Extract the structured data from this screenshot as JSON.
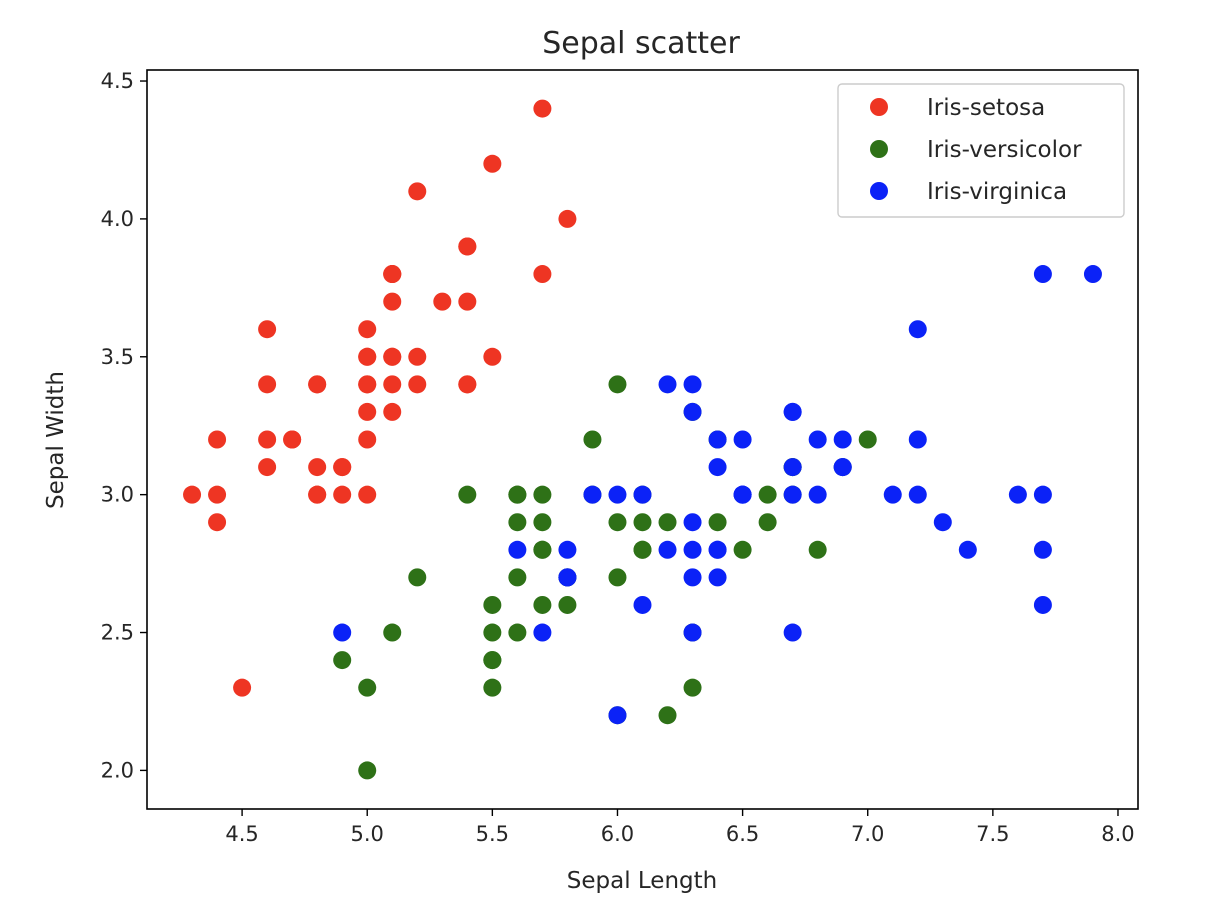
{
  "chart_data": {
    "type": "scatter",
    "title": "Sepal scatter",
    "xlabel": "Sepal Length",
    "ylabel": "Sepal Width",
    "xlim": [
      4.12,
      8.08
    ],
    "ylim": [
      1.86,
      4.54
    ],
    "x_ticks": [
      4.5,
      5.0,
      5.5,
      6.0,
      6.5,
      7.0,
      7.5,
      8.0
    ],
    "x_tick_labels": [
      "4.5",
      "5.0",
      "5.5",
      "6.0",
      "6.5",
      "7.0",
      "7.5",
      "8.0"
    ],
    "y_ticks": [
      2.0,
      2.5,
      3.0,
      3.5,
      4.0,
      4.5
    ],
    "y_tick_labels": [
      "2.0",
      "2.5",
      "3.0",
      "3.5",
      "4.0",
      "4.5"
    ],
    "grid": false,
    "legend_position": "top-right",
    "series": [
      {
        "name": "Iris-setosa",
        "color": "#ee3523",
        "points": [
          [
            5.1,
            3.5
          ],
          [
            4.9,
            3.0
          ],
          [
            4.7,
            3.2
          ],
          [
            4.6,
            3.1
          ],
          [
            5.0,
            3.6
          ],
          [
            5.4,
            3.9
          ],
          [
            4.6,
            3.4
          ],
          [
            5.0,
            3.4
          ],
          [
            4.4,
            2.9
          ],
          [
            4.9,
            3.1
          ],
          [
            5.4,
            3.7
          ],
          [
            4.8,
            3.4
          ],
          [
            4.8,
            3.0
          ],
          [
            4.3,
            3.0
          ],
          [
            5.8,
            4.0
          ],
          [
            5.7,
            4.4
          ],
          [
            5.4,
            3.9
          ],
          [
            5.1,
            3.5
          ],
          [
            5.7,
            3.8
          ],
          [
            5.1,
            3.8
          ],
          [
            5.4,
            3.4
          ],
          [
            5.1,
            3.7
          ],
          [
            4.6,
            3.6
          ],
          [
            5.1,
            3.3
          ],
          [
            4.8,
            3.4
          ],
          [
            5.0,
            3.0
          ],
          [
            5.0,
            3.4
          ],
          [
            5.2,
            3.5
          ],
          [
            5.2,
            3.4
          ],
          [
            4.7,
            3.2
          ],
          [
            4.8,
            3.1
          ],
          [
            5.4,
            3.4
          ],
          [
            5.2,
            4.1
          ],
          [
            5.5,
            4.2
          ],
          [
            4.9,
            3.1
          ],
          [
            5.0,
            3.2
          ],
          [
            5.5,
            3.5
          ],
          [
            4.4,
            3.0
          ],
          [
            5.1,
            3.4
          ],
          [
            5.0,
            3.5
          ],
          [
            4.5,
            2.3
          ],
          [
            4.4,
            3.2
          ],
          [
            5.0,
            3.5
          ],
          [
            5.1,
            3.8
          ],
          [
            4.8,
            3.0
          ],
          [
            5.1,
            3.8
          ],
          [
            4.6,
            3.2
          ],
          [
            5.3,
            3.7
          ],
          [
            5.0,
            3.3
          ]
        ]
      },
      {
        "name": "Iris-versicolor",
        "color": "#2e7117",
        "points": [
          [
            7.0,
            3.2
          ],
          [
            6.4,
            3.2
          ],
          [
            6.9,
            3.1
          ],
          [
            5.5,
            2.3
          ],
          [
            6.5,
            2.8
          ],
          [
            5.7,
            2.8
          ],
          [
            6.3,
            3.3
          ],
          [
            4.9,
            2.4
          ],
          [
            6.6,
            2.9
          ],
          [
            5.2,
            2.7
          ],
          [
            5.0,
            2.0
          ],
          [
            5.9,
            3.0
          ],
          [
            6.0,
            2.2
          ],
          [
            6.1,
            2.9
          ],
          [
            5.6,
            2.9
          ],
          [
            6.7,
            3.1
          ],
          [
            5.6,
            3.0
          ],
          [
            5.8,
            2.7
          ],
          [
            6.2,
            2.2
          ],
          [
            5.6,
            2.5
          ],
          [
            5.9,
            3.2
          ],
          [
            6.1,
            2.8
          ],
          [
            6.3,
            2.5
          ],
          [
            6.1,
            2.8
          ],
          [
            6.4,
            2.9
          ],
          [
            6.6,
            3.0
          ],
          [
            6.8,
            2.8
          ],
          [
            6.7,
            3.0
          ],
          [
            6.0,
            2.9
          ],
          [
            5.7,
            2.6
          ],
          [
            5.5,
            2.4
          ],
          [
            5.5,
            2.4
          ],
          [
            5.8,
            2.7
          ],
          [
            6.0,
            2.7
          ],
          [
            5.4,
            3.0
          ],
          [
            6.0,
            3.4
          ],
          [
            6.7,
            3.1
          ],
          [
            6.3,
            2.3
          ],
          [
            5.6,
            3.0
          ],
          [
            5.5,
            2.5
          ],
          [
            5.5,
            2.6
          ],
          [
            6.1,
            3.0
          ],
          [
            5.8,
            2.6
          ],
          [
            5.0,
            2.3
          ],
          [
            5.6,
            2.7
          ],
          [
            5.7,
            3.0
          ],
          [
            5.7,
            2.9
          ],
          [
            6.2,
            2.9
          ],
          [
            5.1,
            2.5
          ],
          [
            5.7,
            2.8
          ]
        ]
      },
      {
        "name": "Iris-virginica",
        "color": "#0b22f7",
        "points": [
          [
            6.3,
            3.3
          ],
          [
            5.8,
            2.7
          ],
          [
            7.1,
            3.0
          ],
          [
            6.3,
            2.9
          ],
          [
            6.5,
            3.0
          ],
          [
            7.6,
            3.0
          ],
          [
            4.9,
            2.5
          ],
          [
            7.3,
            2.9
          ],
          [
            6.7,
            2.5
          ],
          [
            7.2,
            3.6
          ],
          [
            6.5,
            3.2
          ],
          [
            6.4,
            2.7
          ],
          [
            6.8,
            3.0
          ],
          [
            5.7,
            2.5
          ],
          [
            5.8,
            2.8
          ],
          [
            6.4,
            3.2
          ],
          [
            6.5,
            3.0
          ],
          [
            7.7,
            3.8
          ],
          [
            7.7,
            2.6
          ],
          [
            6.0,
            2.2
          ],
          [
            6.9,
            3.2
          ],
          [
            5.6,
            2.8
          ],
          [
            7.7,
            2.8
          ],
          [
            6.3,
            2.7
          ],
          [
            6.7,
            3.3
          ],
          [
            7.2,
            3.2
          ],
          [
            6.2,
            2.8
          ],
          [
            6.1,
            3.0
          ],
          [
            6.4,
            2.8
          ],
          [
            7.2,
            3.0
          ],
          [
            7.4,
            2.8
          ],
          [
            7.9,
            3.8
          ],
          [
            6.4,
            2.8
          ],
          [
            6.3,
            2.8
          ],
          [
            6.1,
            2.6
          ],
          [
            7.7,
            3.0
          ],
          [
            6.3,
            3.4
          ],
          [
            6.4,
            3.1
          ],
          [
            6.0,
            3.0
          ],
          [
            6.9,
            3.1
          ],
          [
            6.7,
            3.1
          ],
          [
            6.9,
            3.1
          ],
          [
            5.8,
            2.7
          ],
          [
            6.8,
            3.2
          ],
          [
            6.7,
            3.3
          ],
          [
            6.7,
            3.0
          ],
          [
            6.3,
            2.5
          ],
          [
            6.5,
            3.0
          ],
          [
            6.2,
            3.4
          ],
          [
            5.9,
            3.0
          ]
        ]
      }
    ]
  }
}
